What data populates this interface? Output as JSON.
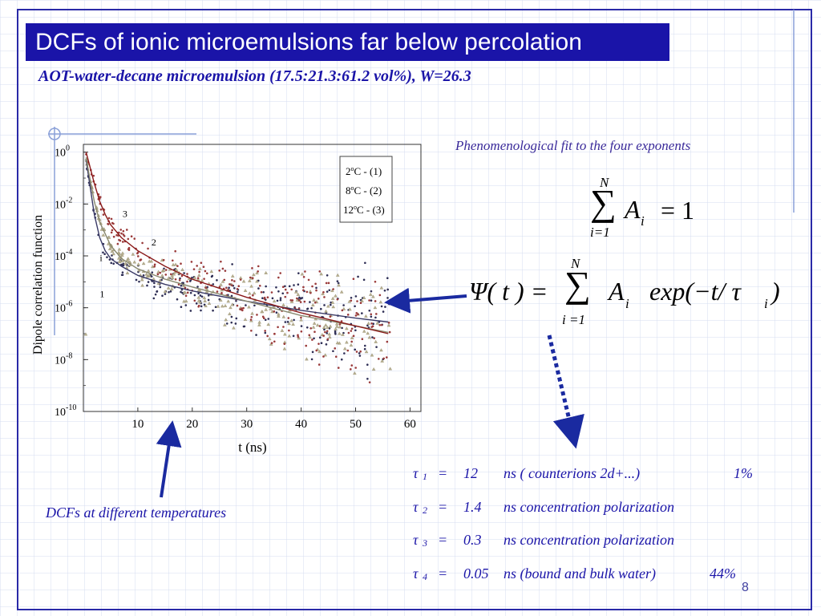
{
  "slide": {
    "title": "DCFs of ionic microemulsions far below percolation",
    "subtitle": "AOT-water-decane microemulsion (17.5:21.3:61.2 vol%), W=26.3",
    "fit_heading": "Phenomenological fit to the four exponents",
    "temperature_note": "DCFs at different temperatures",
    "page_number": "8",
    "colors": {
      "title_bg": "#1a14a8",
      "text_blue": "#1a14a8",
      "arrow": "#1a2aa0"
    }
  },
  "equations": {
    "norm": {
      "sum_top": "N",
      "sum_bottom": "i=1",
      "body": "A",
      "sub": "i",
      "rhs": "=  1"
    },
    "psi": {
      "lhs": "Ψ( t ) =",
      "sum_top": "N",
      "sum_bottom": "i =1",
      "a": "A",
      "a_sub": "i",
      "rest": "exp(−t/ τ",
      "tau_sub": "i",
      "close": " )"
    }
  },
  "taus": [
    {
      "sym": "τ",
      "sub": "1",
      "eq": "=",
      "val": "12",
      "desc": "ns  ( counterions 2d+...)",
      "pct": "1%"
    },
    {
      "sym": "τ",
      "sub": "2",
      "eq": "=",
      "val": "1.4",
      "desc": "ns concentration polarization",
      "pct": ""
    },
    {
      "sym": "τ",
      "sub": "3",
      "eq": "=",
      "val": "0.3",
      "desc": "ns concentration polarization",
      "pct": ""
    },
    {
      "sym": "τ",
      "sub": "4",
      "eq": "=",
      "val": "0.05",
      "desc": "ns (bound and bulk water)",
      "pct": "44%"
    }
  ],
  "chart_data": {
    "type": "scatter",
    "title": "",
    "xlabel": "t  (ns)",
    "ylabel": "Dipole correlation function",
    "xlim": [
      0,
      62
    ],
    "ylim_log10": [
      -10,
      0.3
    ],
    "log_y": true,
    "x_ticks": [
      "10",
      "20",
      "30",
      "40",
      "50",
      "60"
    ],
    "x_tick_values": [
      10,
      20,
      30,
      40,
      50,
      60
    ],
    "y_ticks": [
      {
        "base": "10",
        "exp": "0",
        "log": 0
      },
      {
        "base": "10",
        "exp": "-2",
        "log": -2
      },
      {
        "base": "10",
        "exp": "-4",
        "log": -4
      },
      {
        "base": "10",
        "exp": "-6",
        "log": -6
      },
      {
        "base": "10",
        "exp": "-8",
        "log": -8
      },
      {
        "base": "10",
        "exp": "-10",
        "log": -10
      }
    ],
    "legend": {
      "position": "top-right",
      "entries": [
        {
          "temp": "2",
          "unit": "C",
          "label": " -   (1)"
        },
        {
          "temp": "8",
          "unit": "C",
          "label": " -  (2)"
        },
        {
          "temp": "12",
          "unit": "C",
          "label": " - (3)"
        }
      ]
    },
    "curve_labels": [
      {
        "text": "3",
        "x": 7.2,
        "logy": -2.5
      },
      {
        "text": "2",
        "x": 12.5,
        "logy": -3.6
      },
      {
        "text": "1",
        "x": 3.0,
        "logy": -5.6
      },
      {
        "text": "i",
        "x": 3.0,
        "logy": -4.2
      }
    ],
    "series": [
      {
        "name": "(1)",
        "color": "#3a3a66",
        "fit": [
          [
            0.5,
            -0.3
          ],
          [
            1,
            -1.0
          ],
          [
            2,
            -2.4
          ],
          [
            3,
            -3.3
          ],
          [
            4,
            -3.8
          ],
          [
            5,
            -4.1
          ],
          [
            7,
            -4.4
          ],
          [
            10,
            -4.75
          ],
          [
            15,
            -5.1
          ],
          [
            20,
            -5.35
          ],
          [
            30,
            -5.75
          ],
          [
            40,
            -6.1
          ],
          [
            50,
            -6.4
          ],
          [
            56,
            -6.55
          ]
        ]
      },
      {
        "name": "(2)",
        "color": "#8a8a70",
        "fit": [
          [
            0.5,
            -0.2
          ],
          [
            1,
            -0.8
          ],
          [
            2,
            -1.9
          ],
          [
            3,
            -2.7
          ],
          [
            5,
            -3.6
          ],
          [
            7,
            -4.1
          ],
          [
            10,
            -4.5
          ],
          [
            15,
            -4.9
          ],
          [
            20,
            -5.2
          ],
          [
            30,
            -5.75
          ],
          [
            40,
            -6.3
          ],
          [
            50,
            -6.7
          ],
          [
            56,
            -6.95
          ]
        ]
      },
      {
        "name": "(3)",
        "color": "#8a1a1a",
        "fit": [
          [
            0.5,
            0.0
          ],
          [
            1,
            -0.4
          ],
          [
            2,
            -1.2
          ],
          [
            3,
            -1.9
          ],
          [
            4,
            -2.4
          ],
          [
            5,
            -2.8
          ],
          [
            7,
            -3.3
          ],
          [
            10,
            -3.8
          ],
          [
            15,
            -4.4
          ],
          [
            20,
            -4.9
          ],
          [
            30,
            -5.6
          ],
          [
            40,
            -6.2
          ],
          [
            50,
            -6.7
          ],
          [
            56,
            -7.0
          ]
        ]
      }
    ]
  }
}
